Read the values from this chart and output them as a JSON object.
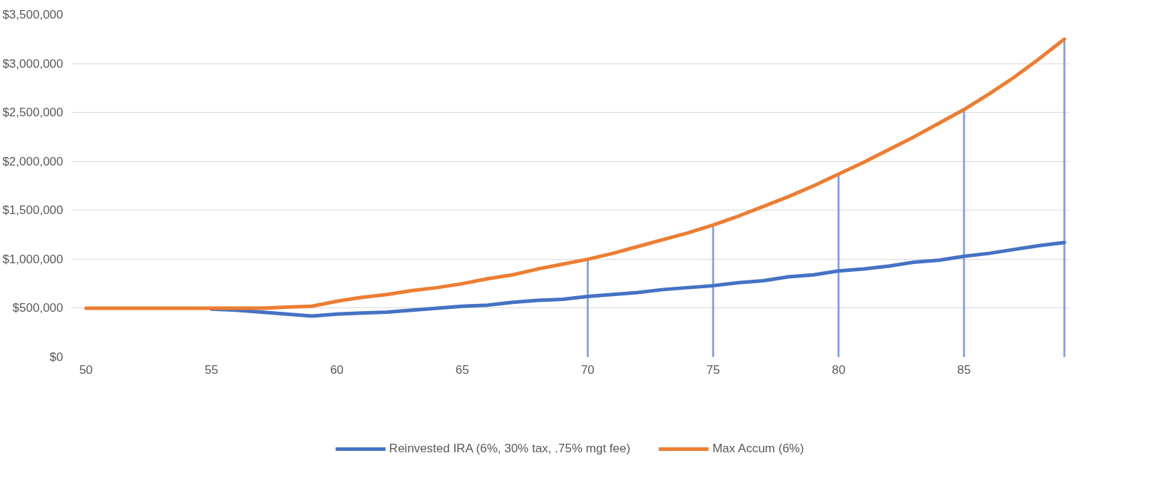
{
  "chart_data": {
    "type": "line",
    "x": [
      50,
      51,
      52,
      53,
      54,
      55,
      56,
      57,
      58,
      59,
      60,
      61,
      62,
      63,
      64,
      65,
      66,
      67,
      68,
      69,
      70,
      71,
      72,
      73,
      74,
      75,
      76,
      77,
      78,
      79,
      80,
      81,
      82,
      83,
      84,
      85,
      86,
      87,
      88,
      89
    ],
    "series": [
      {
        "name": "Reinvested IRA (6%, 30% tax, .75% mgt fee)",
        "color": "#4472c4",
        "values": [
          null,
          null,
          null,
          null,
          null,
          490000,
          480000,
          460000,
          440000,
          420000,
          440000,
          450000,
          460000,
          480000,
          500000,
          520000,
          530000,
          560000,
          580000,
          590000,
          620000,
          640000,
          660000,
          690000,
          710000,
          730000,
          760000,
          780000,
          820000,
          840000,
          880000,
          900000,
          930000,
          970000,
          990000,
          1030000,
          1060000,
          1100000,
          1140000,
          1170000
        ]
      },
      {
        "name": "Max Accum (6%)",
        "color": "#ed7d31",
        "values": [
          500000,
          500000,
          500000,
          500000,
          500000,
          500000,
          500000,
          500000,
          510000,
          520000,
          570000,
          610000,
          640000,
          680000,
          710000,
          750000,
          800000,
          840000,
          900000,
          950000,
          1000000,
          1060000,
          1130000,
          1200000,
          1270000,
          1350000,
          1440000,
          1540000,
          1640000,
          1750000,
          1870000,
          1990000,
          2120000,
          2250000,
          2390000,
          2530000,
          2690000,
          2860000,
          3050000,
          3250000
        ]
      },
      {
        "type": "bar",
        "color": "#7b9be0",
        "x": [
          70,
          75,
          80,
          85,
          89
        ],
        "values": [
          1000000,
          1350000,
          1870000,
          2530000,
          3250000
        ]
      }
    ],
    "xlim": [
      49.4,
      89.2
    ],
    "xticks": [
      50,
      55,
      60,
      65,
      70,
      75,
      80,
      85
    ],
    "ylim": [
      0,
      3500000
    ],
    "yticks": [
      {
        "value": 0,
        "label": "$0"
      },
      {
        "value": 500000,
        "label": "$500,000"
      },
      {
        "value": 1000000,
        "label": "$1,000,000"
      },
      {
        "value": 1500000,
        "label": "$1,500,000"
      },
      {
        "value": 2000000,
        "label": "$2,000,000"
      },
      {
        "value": 2500000,
        "label": "$2,500,000"
      },
      {
        "value": 3000000,
        "label": "$3,000,000"
      },
      {
        "value": 3500000,
        "label": "$3,500,000"
      }
    ],
    "grid": "y",
    "legend": "bottom",
    "line_style": "solid"
  }
}
